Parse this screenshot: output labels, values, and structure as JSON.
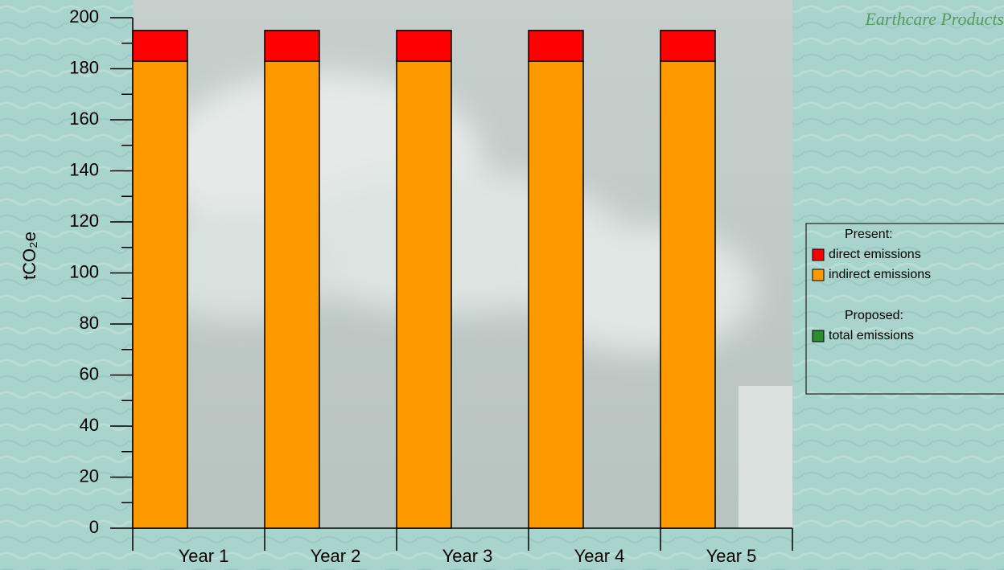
{
  "chart_data": {
    "type": "stacked_bar",
    "header": "Earthcare Products",
    "y_label": "tCO₂e",
    "categories": [
      "Year 1",
      "Year 2",
      "Year 3",
      "Year 4",
      "Year 5"
    ],
    "series": [
      {
        "name": "direct emissions",
        "group": "Present:",
        "color": "#ff0000",
        "values": [
          12,
          12,
          12,
          12,
          12
        ]
      },
      {
        "name": "indirect emissions",
        "group": "Present:",
        "color": "#ff9900",
        "values": [
          183,
          183,
          183,
          183,
          183
        ]
      },
      {
        "name": "total emissions",
        "group": "Proposed:",
        "color": "#2e8b2e",
        "values": [
          null,
          null,
          null,
          null,
          null
        ]
      }
    ],
    "ylim": [
      0,
      200
    ],
    "yticks": [
      0,
      20,
      40,
      60,
      80,
      100,
      120,
      140,
      160,
      180,
      200
    ],
    "yminorticks": [
      10,
      30,
      50,
      70,
      90,
      110,
      130,
      150,
      170,
      190
    ]
  }
}
